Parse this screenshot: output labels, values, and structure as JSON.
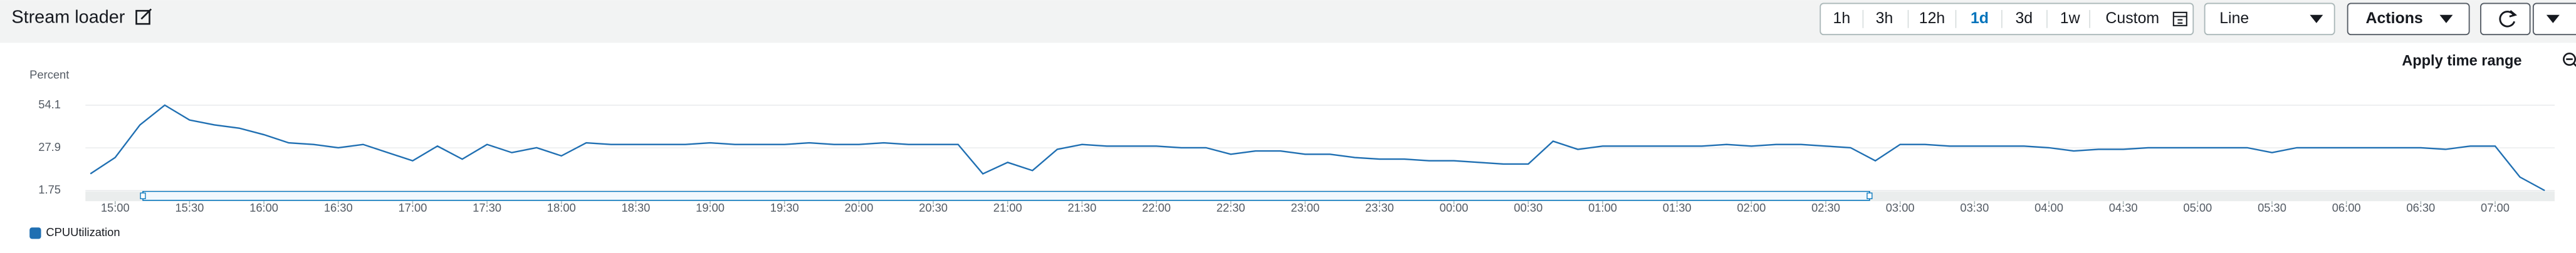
{
  "toolbar": {
    "title": "Stream loader",
    "ranges": [
      "1h",
      "3h",
      "12h",
      "1d",
      "3d",
      "1w",
      "Custom"
    ],
    "selected": 3,
    "chart_style": "Line",
    "actions": "Actions",
    "apply": "Apply time range"
  },
  "chart_data": {
    "type": "line",
    "y_label": "Percent",
    "x": [
      "14:50",
      "15:00",
      "15:10",
      "15:20",
      "15:30",
      "15:40",
      "15:50",
      "16:00",
      "16:10",
      "16:20",
      "16:30",
      "16:40",
      "16:50",
      "17:00",
      "17:10",
      "17:20",
      "17:30",
      "17:40",
      "17:50",
      "18:00",
      "18:10",
      "18:20",
      "18:30",
      "18:40",
      "18:50",
      "19:00",
      "19:10",
      "19:20",
      "19:30",
      "19:40",
      "19:50",
      "20:00",
      "20:10",
      "20:20",
      "20:30",
      "20:40",
      "20:50",
      "21:00",
      "21:10",
      "21:20",
      "21:30",
      "21:40",
      "21:50",
      "22:00",
      "22:10",
      "22:20",
      "22:30",
      "22:40",
      "22:50",
      "23:00",
      "23:10",
      "23:20",
      "23:30",
      "23:40",
      "23:50",
      "00:00",
      "00:10",
      "00:20",
      "00:30",
      "00:40",
      "00:50",
      "01:00",
      "01:10",
      "01:20",
      "01:30",
      "01:40",
      "01:50",
      "02:00",
      "02:10",
      "02:20",
      "02:30",
      "02:40",
      "02:50",
      "03:00",
      "03:10",
      "03:20",
      "03:30",
      "03:40",
      "03:50",
      "04:00",
      "04:10",
      "04:20",
      "04:30",
      "04:40",
      "04:50",
      "05:00",
      "05:10",
      "05:20",
      "05:30",
      "05:40",
      "05:50",
      "06:00",
      "06:10",
      "06:20",
      "06:30",
      "06:40",
      "06:50",
      "07:00",
      "07:10",
      "07:20"
    ],
    "series": [
      {
        "name": "CPUUtilization",
        "color": "#1f6fb2",
        "values": [
          12,
          22,
          42,
          54.1,
          45,
          42,
          40,
          36,
          31,
          30,
          28,
          30,
          25,
          20,
          29,
          21,
          30,
          25,
          28,
          23,
          31,
          30,
          30,
          30,
          30,
          31,
          30,
          30,
          30,
          31,
          30,
          30,
          31,
          30,
          30,
          30,
          12,
          19,
          14,
          27,
          30,
          29,
          29,
          29,
          28,
          28,
          24,
          26,
          26,
          24,
          24,
          22,
          21,
          21,
          20,
          20,
          19,
          18,
          18,
          32,
          27,
          29,
          29,
          29,
          29,
          29,
          30,
          29,
          30,
          30,
          29,
          28,
          20,
          30,
          30,
          29,
          29,
          29,
          29,
          28,
          26,
          27,
          27,
          28,
          28,
          28,
          28,
          28,
          25,
          28,
          28,
          28,
          28,
          28,
          28,
          27,
          29,
          29,
          10,
          1.75
        ]
      }
    ],
    "xlim": [
      "14:48",
      "07:24"
    ],
    "xticks": [
      "15:00",
      "15:30",
      "16:00",
      "16:30",
      "17:00",
      "17:30",
      "18:00",
      "18:30",
      "19:00",
      "19:30",
      "20:00",
      "20:30",
      "21:00",
      "21:30",
      "22:00",
      "22:30",
      "23:00",
      "23:30",
      "00:00",
      "00:30",
      "01:00",
      "01:30",
      "02:00",
      "02:30",
      "03:00",
      "03:30",
      "04:00",
      "04:30",
      "05:00",
      "05:30",
      "06:00",
      "06:30",
      "07:00"
    ],
    "ylim": [
      1.75,
      54.1
    ],
    "yticks": [
      1.75,
      27.9,
      54.1
    ],
    "grid": true,
    "legend": "bottom-left"
  }
}
